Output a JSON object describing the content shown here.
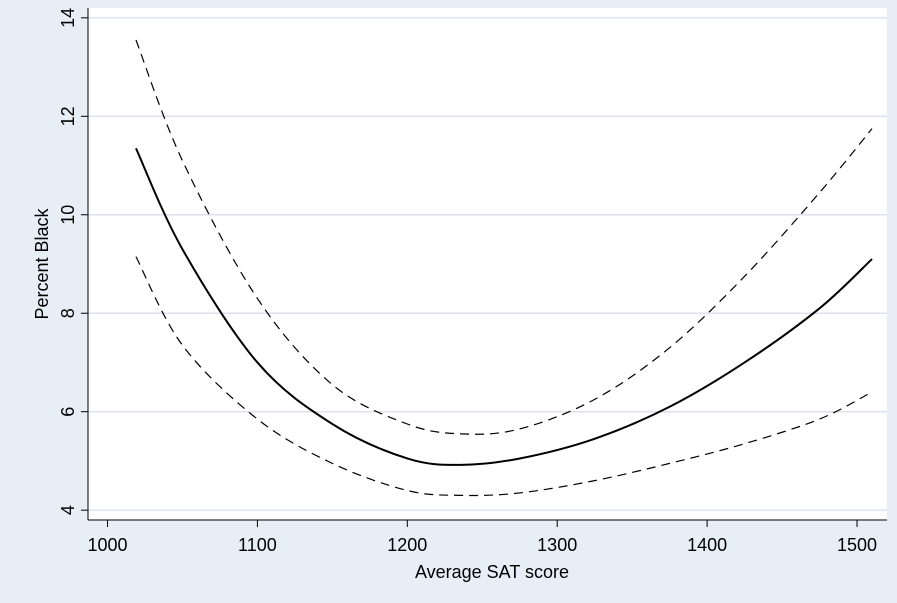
{
  "chart_data": {
    "type": "line",
    "title": "",
    "xlabel": "Average SAT score",
    "ylabel": "Percent Black",
    "xlim": [
      987,
      1520
    ],
    "ylim": [
      3.8,
      14.2
    ],
    "xticks": [
      1000,
      1100,
      1200,
      1300,
      1400,
      1500
    ],
    "yticks": [
      4,
      6,
      8,
      10,
      12,
      14
    ],
    "grid": "horizontal",
    "legend": "none",
    "colors": {
      "background": "#e8eef6",
      "plot_area": "#ffffff",
      "grid": "#dbe3ee",
      "line": "#000000"
    },
    "series": [
      {
        "style": "solid",
        "x": [
          1019,
          1050,
          1100,
          1150,
          1200,
          1236,
          1275,
          1325,
          1375,
          1425,
          1475,
          1510
        ],
        "y": [
          11.35,
          9.3,
          7.0,
          5.75,
          5.05,
          4.92,
          5.05,
          5.45,
          6.1,
          7.0,
          8.1,
          9.1
        ]
      },
      {
        "style": "dashed",
        "x": [
          1019,
          1050,
          1100,
          1150,
          1200,
          1236,
          1275,
          1325,
          1375,
          1425,
          1475,
          1510
        ],
        "y": [
          13.55,
          11.1,
          8.3,
          6.55,
          5.75,
          5.55,
          5.65,
          6.25,
          7.3,
          8.75,
          10.45,
          11.75
        ]
      },
      {
        "style": "dashed",
        "x": [
          1019,
          1050,
          1100,
          1150,
          1200,
          1236,
          1275,
          1325,
          1375,
          1425,
          1475,
          1510
        ],
        "y": [
          9.15,
          7.35,
          5.85,
          4.95,
          4.4,
          4.3,
          4.35,
          4.6,
          4.95,
          5.35,
          5.85,
          6.4
        ]
      }
    ]
  }
}
